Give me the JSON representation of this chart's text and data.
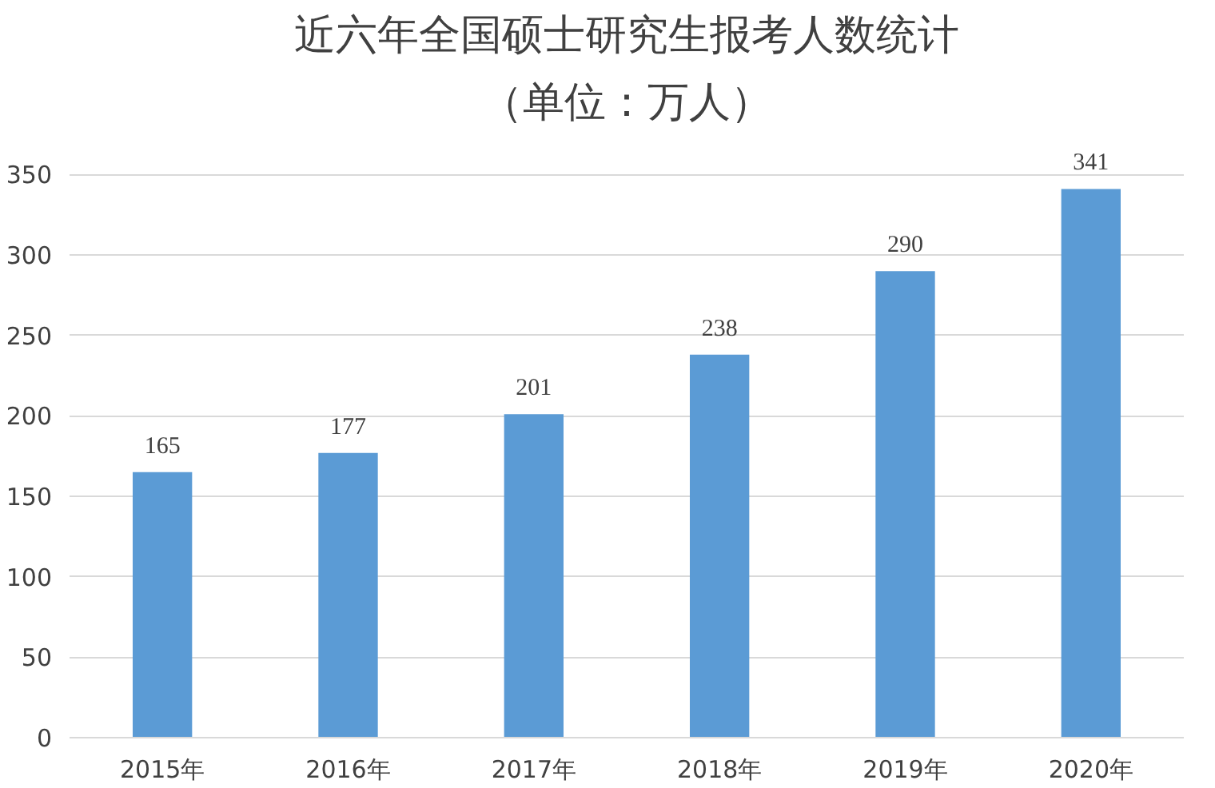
{
  "chart_data": {
    "type": "bar",
    "title": "近六年全国硕士研究生报考人数统计",
    "subtitle": "（单位：万人）",
    "categories": [
      "2015年",
      "2016年",
      "2017年",
      "2018年",
      "2019年",
      "2020年"
    ],
    "values": [
      165,
      177,
      201,
      238,
      290,
      341
    ],
    "color": "#5b9bd5",
    "ylim": [
      0,
      350
    ],
    "yticks": [
      0,
      50,
      100,
      150,
      200,
      250,
      300,
      350
    ],
    "grid": "y",
    "data_labels": true,
    "legend": false
  }
}
